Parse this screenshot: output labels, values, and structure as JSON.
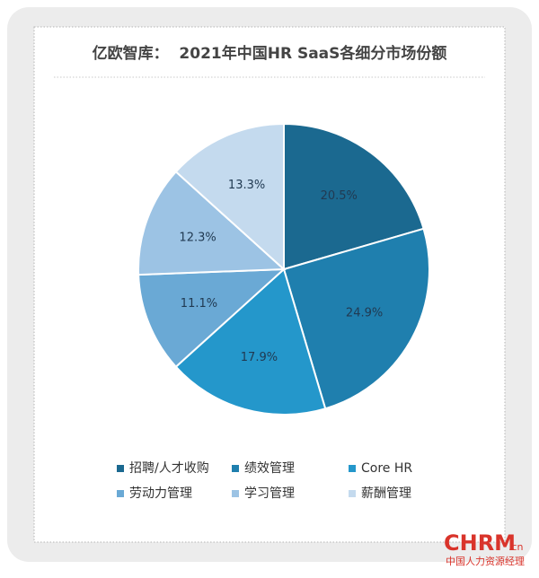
{
  "chart_data": {
    "type": "pie",
    "title": "亿欧智库：  2021年中国HR SaaS各细分市场份额",
    "categories": [
      "招聘/人才收购",
      "绩效管理",
      "Core HR",
      "劳动力管理",
      "学习管理",
      "薪酬管理"
    ],
    "values": [
      20.5,
      24.9,
      17.9,
      11.1,
      12.3,
      13.3
    ],
    "value_labels": [
      "20.5%",
      "24.9%",
      "17.9%",
      "11.1%",
      "12.3%",
      "13.3%"
    ],
    "colors": [
      "#1b6990",
      "#1f7fae",
      "#2497cb",
      "#6aa9d5",
      "#9cc3e4",
      "#c4daee"
    ],
    "legend": "bottom"
  },
  "watermark": {
    "brand": "CHRM",
    "suffix": ".cn",
    "tagline": "中国人力资源经理"
  }
}
